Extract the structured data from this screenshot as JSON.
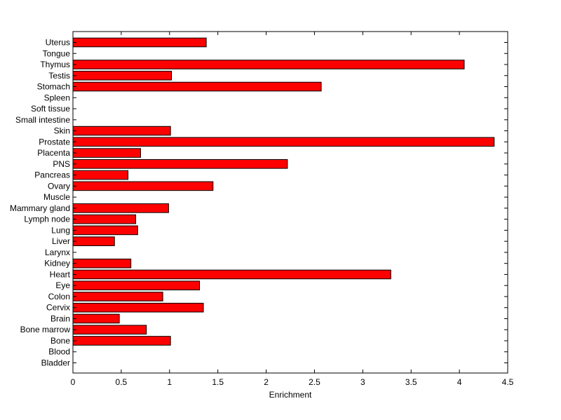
{
  "chart_data": {
    "type": "bar",
    "orientation": "horizontal",
    "categories": [
      "Bladder",
      "Blood",
      "Bone",
      "Bone marrow",
      "Brain",
      "Cervix",
      "Colon",
      "Eye",
      "Heart",
      "Kidney",
      "Larynx",
      "Liver",
      "Lung",
      "Lymph node",
      "Mammary gland",
      "Muscle",
      "Ovary",
      "Pancreas",
      "PNS",
      "Placenta",
      "Prostate",
      "Skin",
      "Small intestine",
      "Soft tissue",
      "Spleen",
      "Stomach",
      "Testis",
      "Thymus",
      "Tongue",
      "Uterus"
    ],
    "values": [
      0,
      0,
      1.01,
      0.76,
      0.48,
      1.35,
      0.93,
      1.31,
      3.29,
      0.6,
      0,
      0.43,
      0.67,
      0.65,
      0.99,
      0,
      1.45,
      0.57,
      2.22,
      0.7,
      4.36,
      1.01,
      0,
      0,
      0,
      2.57,
      1.02,
      4.05,
      0,
      1.38
    ],
    "title": "",
    "xlabel": "Enrichment",
    "ylabel": "",
    "xlim": [
      0,
      4.5
    ],
    "xticks": [
      "0",
      "0.5",
      "1",
      "1.5",
      "2",
      "2.5",
      "3",
      "3.5",
      "4",
      "4.5"
    ],
    "grid": false,
    "legend": "none",
    "colors": {
      "bar_fill": "#ff0000",
      "bar_edge": "#000000",
      "axis": "#000000"
    }
  }
}
